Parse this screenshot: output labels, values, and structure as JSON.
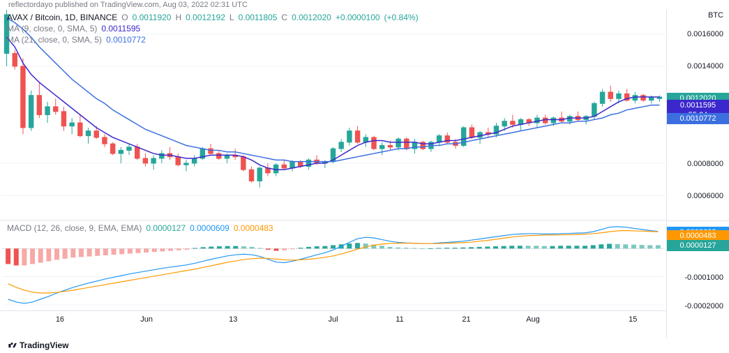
{
  "header": {
    "publish_text": "reflectordayo published on TradingView.com, Aug 03, 2022 02:31 UTC"
  },
  "price_chart": {
    "symbol_label": "AVAX / Bitcoin, 1D, BINANCE",
    "ohlc": {
      "o_label": "O",
      "o": "0.0011920",
      "h_label": "H",
      "h": "0.0012192",
      "l_label": "L",
      "l": "0.0011805",
      "c_label": "C",
      "c": "0.0012020",
      "chg": "+0.0000100",
      "pct": "(+0.84%)"
    },
    "ma9": {
      "label": "MA (9, close, 0, SMA, 5)",
      "value": "0.0011595",
      "color": "#3b28cc"
    },
    "ma21": {
      "label": "MA (21, close, 0, SMA, 5)",
      "value": "0.0010772",
      "color": "#3b6fe0"
    },
    "axis_unit": "BTC",
    "y_ticks": [
      {
        "v": 0.0006,
        "label": "0.0006000"
      },
      {
        "v": 0.0008,
        "label": "0.0008000"
      },
      {
        "v": 0.0014,
        "label": "0.0014000"
      },
      {
        "v": 0.0016,
        "label": "0.0016000"
      }
    ],
    "ymin": 0.00045,
    "ymax": 0.00175,
    "tags": [
      {
        "v": 0.001202,
        "label": "0.0012020",
        "bg": "#26a69a"
      },
      {
        "v": 0.0011595,
        "label": "0.0011595",
        "bg": "#3b28cc",
        "sublabel": "55:24"
      },
      {
        "v": 0.0010772,
        "label": "0.0010772",
        "bg": "#3b6fe0"
      }
    ],
    "candles": [
      [
        0.00172,
        0.00175,
        0.0014,
        0.00148,
        1
      ],
      [
        0.00148,
        0.0015,
        0.00138,
        0.0014,
        0
      ],
      [
        0.0014,
        0.00145,
        0.00098,
        0.00102,
        0
      ],
      [
        0.00102,
        0.00125,
        0.001,
        0.00122,
        1
      ],
      [
        0.00122,
        0.0013,
        0.00108,
        0.0011,
        0
      ],
      [
        0.0011,
        0.00118,
        0.00105,
        0.00115,
        1
      ],
      [
        0.00115,
        0.0012,
        0.0011,
        0.00112,
        0
      ],
      [
        0.00112,
        0.00115,
        0.001,
        0.00103,
        0
      ],
      [
        0.00103,
        0.00108,
        0.00098,
        0.00105,
        1
      ],
      [
        0.00105,
        0.0011,
        0.00096,
        0.00097,
        0
      ],
      [
        0.00097,
        0.00102,
        0.00092,
        0.001,
        1
      ],
      [
        0.001,
        0.00103,
        0.00095,
        0.00096,
        0
      ],
      [
        0.00096,
        0.00098,
        0.0009,
        0.00092,
        0
      ],
      [
        0.00092,
        0.00093,
        0.00085,
        0.00086,
        0
      ],
      [
        0.00086,
        0.0009,
        0.0008,
        0.00088,
        1
      ],
      [
        0.00088,
        0.00092,
        0.00085,
        0.0009,
        1
      ],
      [
        0.0009,
        0.00092,
        0.00082,
        0.00083,
        0
      ],
      [
        0.00083,
        0.00086,
        0.00078,
        0.0008,
        0
      ],
      [
        0.0008,
        0.00085,
        0.00076,
        0.00083,
        1
      ],
      [
        0.00083,
        0.00088,
        0.0008,
        0.00086,
        1
      ],
      [
        0.00086,
        0.0009,
        0.00082,
        0.00084,
        0
      ],
      [
        0.00084,
        0.00086,
        0.00078,
        0.00079,
        0
      ],
      [
        0.00079,
        0.00082,
        0.00075,
        0.0008,
        1
      ],
      [
        0.0008,
        0.00085,
        0.00078,
        0.00083,
        1
      ],
      [
        0.00083,
        0.0009,
        0.00082,
        0.00089,
        1
      ],
      [
        0.00089,
        0.00092,
        0.00085,
        0.00086,
        0
      ],
      [
        0.00086,
        0.00088,
        0.00082,
        0.00083,
        0
      ],
      [
        0.00083,
        0.00086,
        0.0008,
        0.00085,
        1
      ],
      [
        0.00085,
        0.00089,
        0.00082,
        0.00084,
        0
      ],
      [
        0.00084,
        0.00085,
        0.00075,
        0.00076,
        0
      ],
      [
        0.00076,
        0.00078,
        0.00068,
        0.00069,
        0
      ],
      [
        0.00069,
        0.00078,
        0.00065,
        0.00077,
        1
      ],
      [
        0.00077,
        0.0008,
        0.00072,
        0.00074,
        0
      ],
      [
        0.00074,
        0.0008,
        0.00072,
        0.00079,
        1
      ],
      [
        0.00079,
        0.00082,
        0.00076,
        0.00077,
        0
      ],
      [
        0.00077,
        0.00082,
        0.00075,
        0.00081,
        1
      ],
      [
        0.00081,
        0.00082,
        0.00077,
        0.00078,
        0
      ],
      [
        0.00078,
        0.00083,
        0.00076,
        0.00082,
        1
      ],
      [
        0.00082,
        0.00085,
        0.00079,
        0.0008,
        0
      ],
      [
        0.0008,
        0.00082,
        0.00077,
        0.00081,
        1
      ],
      [
        0.00081,
        0.0009,
        0.0008,
        0.00089,
        1
      ],
      [
        0.00089,
        0.00095,
        0.00087,
        0.00093,
        1
      ],
      [
        0.00093,
        0.00102,
        0.00091,
        0.001,
        1
      ],
      [
        0.001,
        0.00103,
        0.00092,
        0.00093,
        0
      ],
      [
        0.00093,
        0.00098,
        0.0009,
        0.00096,
        1
      ],
      [
        0.00096,
        0.00097,
        0.00088,
        0.00089,
        0
      ],
      [
        0.00089,
        0.00093,
        0.00085,
        0.00091,
        1
      ],
      [
        0.00091,
        0.00094,
        0.00088,
        0.0009,
        0
      ],
      [
        0.0009,
        0.00096,
        0.00088,
        0.00095,
        1
      ],
      [
        0.00095,
        0.00096,
        0.00088,
        0.00089,
        0
      ],
      [
        0.00089,
        0.00095,
        0.00086,
        0.00093,
        1
      ],
      [
        0.00093,
        0.00094,
        0.00088,
        0.00089,
        0
      ],
      [
        0.00089,
        0.00094,
        0.00087,
        0.00093,
        1
      ],
      [
        0.00093,
        0.00098,
        0.00091,
        0.00097,
        1
      ],
      [
        0.00097,
        0.00099,
        0.00092,
        0.00093,
        0
      ],
      [
        0.00093,
        0.00095,
        0.00089,
        0.00091,
        0
      ],
      [
        0.00091,
        0.00103,
        0.0009,
        0.00102,
        1
      ],
      [
        0.00102,
        0.00104,
        0.00095,
        0.00096,
        0
      ],
      [
        0.00096,
        0.001,
        0.00092,
        0.00099,
        1
      ],
      [
        0.00099,
        0.00102,
        0.00096,
        0.00098,
        0
      ],
      [
        0.00098,
        0.00105,
        0.00096,
        0.00103,
        1
      ],
      [
        0.00103,
        0.00108,
        0.001,
        0.00106,
        1
      ],
      [
        0.00106,
        0.0011,
        0.00102,
        0.00104,
        0
      ],
      [
        0.00104,
        0.00108,
        0.001,
        0.00107,
        1
      ],
      [
        0.00107,
        0.00108,
        0.00103,
        0.00105,
        0
      ],
      [
        0.00105,
        0.0011,
        0.00102,
        0.00108,
        1
      ],
      [
        0.00108,
        0.0011,
        0.00104,
        0.00105,
        0
      ],
      [
        0.00105,
        0.00109,
        0.00103,
        0.00108,
        1
      ],
      [
        0.00108,
        0.00112,
        0.00105,
        0.00106,
        0
      ],
      [
        0.00106,
        0.0011,
        0.00104,
        0.00109,
        1
      ],
      [
        0.00109,
        0.00112,
        0.00106,
        0.00107,
        0
      ],
      [
        0.00107,
        0.0011,
        0.00104,
        0.00109,
        1
      ],
      [
        0.00109,
        0.00118,
        0.00107,
        0.00117,
        1
      ],
      [
        0.00117,
        0.00126,
        0.00115,
        0.00124,
        1
      ],
      [
        0.00124,
        0.00128,
        0.00118,
        0.0012,
        0
      ],
      [
        0.0012,
        0.00125,
        0.00117,
        0.00123,
        1
      ],
      [
        0.00123,
        0.00126,
        0.00118,
        0.00119,
        0
      ],
      [
        0.00119,
        0.00124,
        0.00117,
        0.00122,
        1
      ],
      [
        0.00122,
        0.00123,
        0.00118,
        0.00119,
        0
      ],
      [
        0.00119,
        0.00122,
        0.00117,
        0.00121,
        1
      ],
      [
        0.00121,
        0.00122,
        0.00118,
        0.0012,
        1
      ]
    ],
    "ma9_path": [
      0.00158,
      0.00152,
      0.00142,
      0.00135,
      0.0013,
      0.00126,
      0.00122,
      0.00118,
      0.00114,
      0.0011,
      0.00106,
      0.00102,
      0.00099,
      0.00096,
      0.00094,
      0.00092,
      0.0009,
      0.00088,
      0.00086,
      0.00085,
      0.00085,
      0.00084,
      0.00083,
      0.00083,
      0.00084,
      0.00085,
      0.00085,
      0.00085,
      0.00085,
      0.00084,
      0.00082,
      0.00079,
      0.00077,
      0.00076,
      0.00076,
      0.00077,
      0.00078,
      0.00079,
      0.0008,
      0.0008,
      0.00082,
      0.00085,
      0.00088,
      0.00091,
      0.00093,
      0.00094,
      0.00094,
      0.00093,
      0.00093,
      0.00093,
      0.00093,
      0.00092,
      0.00092,
      0.00093,
      0.00094,
      0.00094,
      0.00095,
      0.00096,
      0.00097,
      0.00098,
      0.00099,
      0.00101,
      0.00103,
      0.00104,
      0.00105,
      0.00106,
      0.00107,
      0.00107,
      0.00107,
      0.00108,
      0.00108,
      0.00108,
      0.00109,
      0.00112,
      0.00115,
      0.00118,
      0.0012,
      0.00121,
      0.00121,
      0.00121,
      0.00121
    ],
    "ma21_path": [
      0.0017,
      0.00167,
      0.00163,
      0.00158,
      0.00152,
      0.00147,
      0.00142,
      0.00137,
      0.00132,
      0.00128,
      0.00124,
      0.0012,
      0.00117,
      0.00113,
      0.0011,
      0.00107,
      0.00104,
      0.00101,
      0.00099,
      0.00097,
      0.00095,
      0.00093,
      0.00091,
      0.0009,
      0.00089,
      0.00088,
      0.00088,
      0.00087,
      0.00087,
      0.00086,
      0.00085,
      0.00084,
      0.00083,
      0.00082,
      0.00082,
      0.00081,
      0.00081,
      0.00081,
      0.00081,
      0.00081,
      0.00081,
      0.00082,
      0.00083,
      0.00084,
      0.00085,
      0.00086,
      0.00087,
      0.00088,
      0.00089,
      0.00089,
      0.0009,
      0.0009,
      0.00091,
      0.00091,
      0.00092,
      0.00092,
      0.00093,
      0.00094,
      0.00095,
      0.00096,
      0.00097,
      0.00098,
      0.00099,
      0.001,
      0.00101,
      0.00102,
      0.00103,
      0.00104,
      0.00105,
      0.00105,
      0.00106,
      0.00106,
      0.00107,
      0.00108,
      0.0011,
      0.00111,
      0.00113,
      0.00114,
      0.00115,
      0.00116,
      0.00116
    ]
  },
  "macd": {
    "label": "MACD (12, 26, close, 9, EMA, EMA)",
    "val1": "0.0000127",
    "val1_color": "#26a69a",
    "val2": "0.0000609",
    "val2_color": "#2196f3",
    "val3": "0.0000483",
    "val3_color": "#ff9800",
    "ymin": -0.00022,
    "ymax": 0.0001,
    "y_ticks": [
      {
        "v": -0.0002,
        "label": "-0.0002000"
      },
      {
        "v": -0.0001,
        "label": "-0.0001000"
      }
    ],
    "tags": [
      {
        "v": 6.09e-05,
        "label": "0.0000609",
        "bg": "#2196f3"
      },
      {
        "v": 4.83e-05,
        "label": "0.0000483",
        "bg": "#ff9800"
      },
      {
        "v": 1.27e-05,
        "label": "0.0000127",
        "bg": "#26a69a"
      }
    ],
    "hist": [
      -55,
      -60,
      -60,
      -55,
      -50,
      -45,
      -40,
      -36,
      -32,
      -30,
      -28,
      -26,
      -24,
      -22,
      -20,
      -18,
      -16,
      -14,
      -12,
      -10,
      -8,
      -6,
      -4,
      2,
      5,
      7,
      8,
      9,
      9,
      8,
      6,
      2,
      -4,
      -8,
      -6,
      -2,
      3,
      6,
      8,
      9,
      12,
      15,
      18,
      20,
      18,
      14,
      10,
      6,
      4,
      3,
      2,
      1,
      1,
      2,
      3,
      3,
      4,
      5,
      6,
      7,
      8,
      9,
      10,
      10,
      10,
      10,
      9,
      9,
      10,
      10,
      10,
      10,
      12,
      15,
      17,
      16,
      15,
      14,
      13,
      12,
      12
    ],
    "hist_dir": [
      0,
      0,
      1,
      1,
      1,
      1,
      1,
      1,
      1,
      1,
      1,
      1,
      1,
      1,
      1,
      1,
      1,
      1,
      1,
      1,
      1,
      1,
      1,
      1,
      1,
      1,
      1,
      1,
      1,
      0,
      0,
      0,
      0,
      0,
      1,
      1,
      1,
      1,
      1,
      1,
      1,
      1,
      1,
      1,
      0,
      0,
      0,
      0,
      0,
      0,
      0,
      0,
      1,
      1,
      1,
      1,
      1,
      1,
      1,
      1,
      1,
      1,
      1,
      1,
      0,
      0,
      0,
      1,
      1,
      1,
      1,
      1,
      1,
      1,
      1,
      0,
      0,
      0,
      0,
      0,
      0
    ],
    "macd_line": [
      -180,
      -190,
      -195,
      -190,
      -180,
      -170,
      -158,
      -148,
      -138,
      -130,
      -122,
      -115,
      -108,
      -102,
      -96,
      -90,
      -85,
      -80,
      -75,
      -70,
      -66,
      -62,
      -58,
      -52,
      -45,
      -38,
      -32,
      -26,
      -22,
      -20,
      -22,
      -28,
      -38,
      -48,
      -50,
      -45,
      -38,
      -30,
      -22,
      -15,
      -5,
      8,
      22,
      35,
      40,
      38,
      32,
      26,
      22,
      20,
      19,
      18,
      18,
      20,
      22,
      24,
      26,
      30,
      34,
      38,
      42,
      46,
      50,
      52,
      53,
      53,
      52,
      52,
      53,
      54,
      55,
      56,
      60,
      68,
      76,
      78,
      76,
      72,
      68,
      64,
      61
    ],
    "signal_line": [
      -125,
      -138,
      -148,
      -155,
      -158,
      -158,
      -156,
      -152,
      -148,
      -143,
      -138,
      -133,
      -128,
      -123,
      -118,
      -113,
      -108,
      -103,
      -98,
      -93,
      -88,
      -83,
      -78,
      -73,
      -67,
      -61,
      -55,
      -49,
      -44,
      -39,
      -36,
      -34,
      -35,
      -37,
      -40,
      -41,
      -40,
      -38,
      -35,
      -31,
      -26,
      -19,
      -11,
      -2,
      6,
      12,
      16,
      18,
      19,
      19,
      19,
      18,
      18,
      18,
      19,
      20,
      21,
      23,
      26,
      29,
      33,
      37,
      41,
      44,
      46,
      47,
      48,
      48,
      49,
      49,
      50,
      51,
      53,
      56,
      60,
      63,
      64,
      63,
      62,
      61,
      60
    ]
  },
  "time_axis": {
    "labels": [
      {
        "x": 0.09,
        "text": "16"
      },
      {
        "x": 0.22,
        "text": "Jun"
      },
      {
        "x": 0.35,
        "text": "13"
      },
      {
        "x": 0.5,
        "text": "Jul"
      },
      {
        "x": 0.6,
        "text": "11"
      },
      {
        "x": 0.7,
        "text": "21"
      },
      {
        "x": 0.8,
        "text": "Aug"
      },
      {
        "x": 0.95,
        "text": "15"
      }
    ]
  },
  "footer": {
    "brand": "TradingView"
  },
  "colors": {
    "up": "#26a69a",
    "dn": "#ef5350",
    "ohlc_text": "#26a69a",
    "legend_gray": "#787b86"
  }
}
